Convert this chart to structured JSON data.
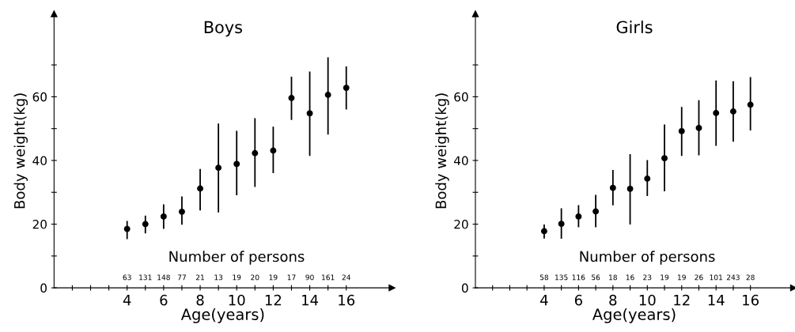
{
  "chart_data": [
    {
      "type": "scatter",
      "title": "Boys",
      "xlabel": "Age(years)",
      "ylabel": "Body weight(kg)",
      "marker": "circle",
      "grid": false,
      "xlim": [
        0,
        18.5
      ],
      "ylim": [
        0,
        86
      ],
      "xticks": [
        {
          "value": 1,
          "label": null
        },
        {
          "value": 2,
          "label": null
        },
        {
          "value": 3,
          "label": null
        },
        4,
        {
          "value": 5,
          "label": null
        },
        6,
        {
          "value": 7,
          "label": null
        },
        8,
        {
          "value": 9,
          "label": null
        },
        10,
        {
          "value": 11,
          "label": null
        },
        12,
        {
          "value": 13,
          "label": null
        },
        14,
        {
          "value": 15,
          "label": null
        },
        16
      ],
      "yticks": [
        0,
        {
          "value": 10,
          "label": null
        },
        20,
        {
          "value": 30,
          "label": null
        },
        40,
        {
          "value": 50,
          "label": null
        },
        60,
        {
          "value": 70,
          "label": null
        }
      ],
      "x": [
        4,
        5,
        6,
        7,
        8,
        9,
        10,
        11,
        12,
        13,
        14,
        15,
        16
      ],
      "series": [
        {
          "color": "#000000",
          "values": [
            18.5,
            20,
            22.4,
            23.9,
            31.2,
            37.7,
            38.9,
            42.3,
            43.1,
            59.6,
            54.8,
            60.6,
            62.8
          ],
          "errors": [
            [
              15.3,
              21.0
            ],
            [
              17.1,
              22.7
            ],
            [
              18.5,
              26.2
            ],
            [
              19.8,
              28.7
            ],
            [
              24.3,
              37.3
            ],
            [
              23.7,
              51.6
            ],
            [
              29.1,
              49.3
            ],
            [
              31.7,
              53.3
            ],
            [
              36.0,
              50.6
            ],
            [
              52.7,
              66.3
            ],
            [
              41.4,
              67.9
            ],
            [
              48.1,
              72.4
            ],
            [
              56.0,
              69.5
            ]
          ]
        }
      ],
      "annotations": [
        "Number of persons",
        "63",
        "131",
        "148",
        "77",
        "21",
        "13",
        "19",
        "20",
        "19",
        "17",
        "90",
        "161",
        "24"
      ]
    },
    {
      "type": "scatter",
      "title": "Girls",
      "xlabel": "Age(years)",
      "ylabel": "Body weight(kg)",
      "marker": "circle",
      "grid": false,
      "xlim": [
        0,
        18.5
      ],
      "ylim": [
        0,
        86
      ],
      "xticks": [
        {
          "value": 1,
          "label": null
        },
        {
          "value": 2,
          "label": null
        },
        {
          "value": 3,
          "label": null
        },
        4,
        {
          "value": 5,
          "label": null
        },
        6,
        {
          "value": 7,
          "label": null
        },
        8,
        {
          "value": 9,
          "label": null
        },
        10,
        {
          "value": 11,
          "label": null
        },
        12,
        {
          "value": 13,
          "label": null
        },
        14,
        {
          "value": 15,
          "label": null
        },
        16
      ],
      "yticks": [
        0,
        {
          "value": 10,
          "label": null
        },
        20,
        {
          "value": 30,
          "label": null
        },
        40,
        {
          "value": 50,
          "label": null
        },
        60,
        {
          "value": 70,
          "label": null
        }
      ],
      "x": [
        4,
        5,
        6,
        7,
        8,
        9,
        10,
        11,
        12,
        13,
        14,
        15,
        16
      ],
      "series": [
        {
          "color": "#000000",
          "values": [
            17.8,
            20.1,
            22.4,
            24,
            31.4,
            31.1,
            34.3,
            40.7,
            49.2,
            50.2,
            54.9,
            55.4,
            57.5
          ],
          "errors": [
            [
              15.5,
              19.9
            ],
            [
              15.4,
              25.0
            ],
            [
              19.0,
              26.0
            ],
            [
              19.0,
              29.2
            ],
            [
              25.9,
              37.0
            ],
            [
              19.9,
              42.0
            ],
            [
              28.8,
              40.1
            ],
            [
              30.3,
              51.3
            ],
            [
              41.4,
              56.8
            ],
            [
              41.6,
              58.9
            ],
            [
              44.6,
              65.1
            ],
            [
              45.9,
              64.9
            ],
            [
              49.4,
              66.2
            ]
          ]
        }
      ],
      "annotations": [
        "Number of persons",
        "58",
        "135",
        "116",
        "56",
        "18",
        "16",
        "23",
        "19",
        "19",
        "26",
        "101",
        "243",
        "28"
      ]
    }
  ]
}
